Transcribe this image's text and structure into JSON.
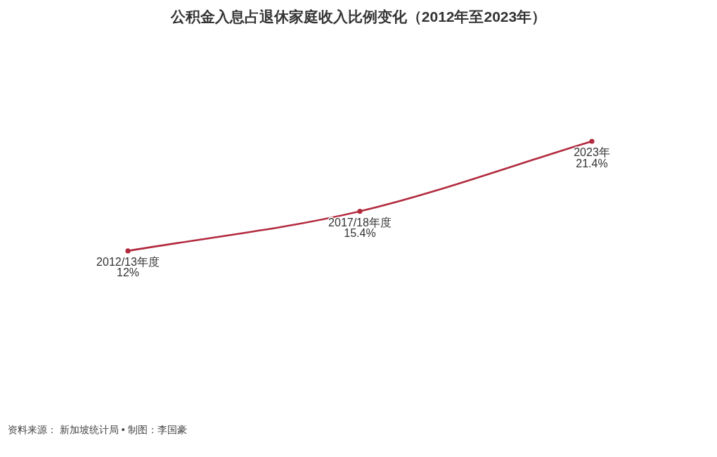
{
  "chart_data": {
    "type": "line",
    "title": "公积金入息占退休家庭收入比例变化（2012年至2023年）",
    "categories": [
      "2012/13年度",
      "2017/18年度",
      "2023年"
    ],
    "values": [
      12,
      15.4,
      21.4
    ],
    "color": "#b22a3e",
    "marker": "circle",
    "line_style": "solid",
    "value_labels": [
      "12%",
      "15.4%",
      "21.4%"
    ],
    "annotations": [
      "资料来源： 新加坡统计局 • 制图：李国豪"
    ]
  }
}
